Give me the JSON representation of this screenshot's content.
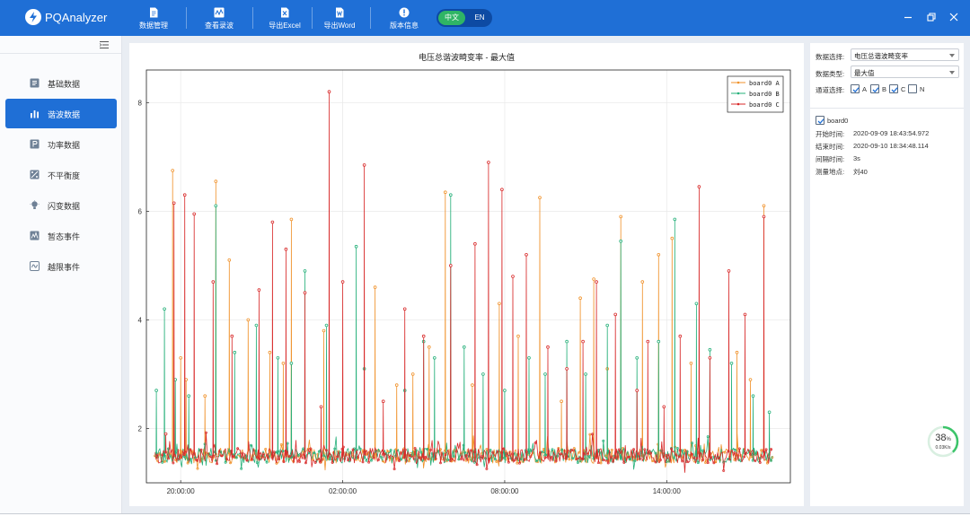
{
  "app": {
    "title": "PQAnalyzer",
    "brand_color": "#1f6fd6"
  },
  "toolbar": [
    {
      "label": "数据管理",
      "icon": "document-icon"
    },
    {
      "label": "查看录波",
      "icon": "waveform-icon"
    },
    {
      "label": "导出Excel",
      "icon": "excel-icon"
    },
    {
      "label": "导出Word",
      "icon": "word-icon"
    },
    {
      "label": "版本信息",
      "icon": "info-icon"
    }
  ],
  "language": {
    "zh": "中文",
    "en": "EN",
    "selected": "中文"
  },
  "sidebar": {
    "items": [
      {
        "label": "基础数据",
        "icon": "list-icon"
      },
      {
        "label": "谐波数据",
        "icon": "bar-chart-icon",
        "active": true
      },
      {
        "label": "功率数据",
        "icon": "power-icon"
      },
      {
        "label": "不平衡度",
        "icon": "imbalance-icon"
      },
      {
        "label": "闪变数据",
        "icon": "bulb-icon"
      },
      {
        "label": "暂态事件",
        "icon": "transient-icon"
      },
      {
        "label": "越限事件",
        "icon": "limit-icon"
      }
    ]
  },
  "filters": {
    "data_select": {
      "label": "数据选择:",
      "value": "电压总谐波畸变率"
    },
    "data_type": {
      "label": "数据类型:",
      "value": "最大值"
    },
    "channel": {
      "label": "通道选择:",
      "options": [
        {
          "label": "A",
          "checked": true
        },
        {
          "label": "B",
          "checked": true
        },
        {
          "label": "C",
          "checked": true
        },
        {
          "label": "N",
          "checked": false
        }
      ]
    }
  },
  "device": {
    "name": "board0",
    "checked": true,
    "start": {
      "label": "开始时间:",
      "value": "2020-09-09 18:43:54.972"
    },
    "end": {
      "label": "结束时间:",
      "value": "2020-09-10 18:34:48.114"
    },
    "interval": {
      "label": "间隔时间:",
      "value": "3s"
    },
    "location": {
      "label": "测量地点:",
      "value": "刘40"
    }
  },
  "speed": {
    "percent": "38",
    "unit": "%",
    "rate": "0.03K/s",
    "level": 0.38
  },
  "chart_data": {
    "type": "line",
    "title": "电压总谐波畸变率 - 最大值",
    "xlabel": "",
    "ylabel": "",
    "x_tick_labels": [
      "20:00:00",
      "02:00:00",
      "08:00:00",
      "14:00:00"
    ],
    "x_ticks_hours": [
      20,
      26,
      32,
      38
    ],
    "xlim_hours": [
      18.73,
      42.58
    ],
    "y_ticks": [
      2,
      4,
      6,
      8
    ],
    "ylim": [
      1.0,
      8.6
    ],
    "grid": true,
    "legend_position": "top-right",
    "baseline_approx": 1.5,
    "series": [
      {
        "name": "board0 A",
        "color": "#f0922b",
        "spikes": [
          [
            19.7,
            6.75
          ],
          [
            20.0,
            3.3
          ],
          [
            20.2,
            2.9
          ],
          [
            20.9,
            2.6
          ],
          [
            21.3,
            6.55
          ],
          [
            21.8,
            5.1
          ],
          [
            22.5,
            4.0
          ],
          [
            23.3,
            3.4
          ],
          [
            23.8,
            3.2
          ],
          [
            24.1,
            5.85
          ],
          [
            25.3,
            3.8
          ],
          [
            27.2,
            4.6
          ],
          [
            28.0,
            2.8
          ],
          [
            28.6,
            3.0
          ],
          [
            29.2,
            3.5
          ],
          [
            29.8,
            6.35
          ],
          [
            30.8,
            2.8
          ],
          [
            31.8,
            4.3
          ],
          [
            32.5,
            3.7
          ],
          [
            33.3,
            6.25
          ],
          [
            34.1,
            2.5
          ],
          [
            34.8,
            4.4
          ],
          [
            35.3,
            4.75
          ],
          [
            35.8,
            3.1
          ],
          [
            36.3,
            5.9
          ],
          [
            37.1,
            4.7
          ],
          [
            37.7,
            5.2
          ],
          [
            38.2,
            5.5
          ],
          [
            38.9,
            3.2
          ],
          [
            40.6,
            3.4
          ],
          [
            41.1,
            2.9
          ],
          [
            41.6,
            6.1
          ]
        ]
      },
      {
        "name": "board0 B",
        "color": "#26b07a",
        "spikes": [
          [
            19.1,
            2.7
          ],
          [
            19.4,
            4.2
          ],
          [
            19.8,
            2.9
          ],
          [
            20.3,
            2.6
          ],
          [
            21.3,
            6.1
          ],
          [
            22.0,
            3.4
          ],
          [
            22.8,
            3.9
          ],
          [
            23.6,
            3.3
          ],
          [
            24.1,
            3.2
          ],
          [
            24.6,
            4.9
          ],
          [
            25.4,
            3.9
          ],
          [
            26.5,
            5.35
          ],
          [
            26.8,
            3.1
          ],
          [
            28.3,
            2.7
          ],
          [
            29.0,
            3.6
          ],
          [
            29.4,
            3.3
          ],
          [
            30.0,
            6.3
          ],
          [
            30.5,
            3.5
          ],
          [
            31.2,
            3.0
          ],
          [
            32.0,
            2.7
          ],
          [
            32.9,
            3.3
          ],
          [
            33.5,
            3.0
          ],
          [
            34.3,
            3.6
          ],
          [
            35.0,
            3.0
          ],
          [
            35.8,
            3.9
          ],
          [
            36.3,
            5.45
          ],
          [
            36.9,
            3.3
          ],
          [
            37.7,
            3.6
          ],
          [
            38.3,
            5.85
          ],
          [
            39.1,
            4.3
          ],
          [
            39.6,
            3.45
          ],
          [
            40.4,
            3.2
          ],
          [
            41.2,
            2.6
          ],
          [
            41.8,
            2.3
          ]
        ]
      },
      {
        "name": "board0 C",
        "color": "#d82a2a",
        "spikes": [
          [
            19.45,
            1.9
          ],
          [
            19.75,
            6.15
          ],
          [
            20.15,
            6.3
          ],
          [
            20.5,
            5.95
          ],
          [
            21.2,
            4.7
          ],
          [
            21.9,
            3.7
          ],
          [
            22.9,
            4.55
          ],
          [
            23.4,
            5.8
          ],
          [
            23.9,
            5.3
          ],
          [
            24.6,
            4.5
          ],
          [
            25.2,
            2.4
          ],
          [
            25.5,
            8.2
          ],
          [
            26.0,
            4.7
          ],
          [
            26.8,
            6.85
          ],
          [
            27.5,
            2.5
          ],
          [
            28.3,
            4.2
          ],
          [
            29.0,
            3.7
          ],
          [
            30.0,
            5.0
          ],
          [
            30.9,
            5.4
          ],
          [
            31.4,
            6.9
          ],
          [
            31.9,
            6.4
          ],
          [
            32.3,
            4.8
          ],
          [
            32.8,
            5.2
          ],
          [
            33.6,
            3.5
          ],
          [
            34.3,
            3.1
          ],
          [
            34.9,
            3.6
          ],
          [
            35.4,
            4.7
          ],
          [
            36.1,
            4.1
          ],
          [
            36.9,
            2.7
          ],
          [
            37.3,
            3.6
          ],
          [
            37.9,
            2.4
          ],
          [
            38.5,
            3.7
          ],
          [
            39.2,
            6.45
          ],
          [
            39.6,
            3.3
          ],
          [
            40.3,
            4.9
          ],
          [
            40.9,
            4.1
          ],
          [
            41.6,
            5.9
          ]
        ]
      }
    ]
  }
}
